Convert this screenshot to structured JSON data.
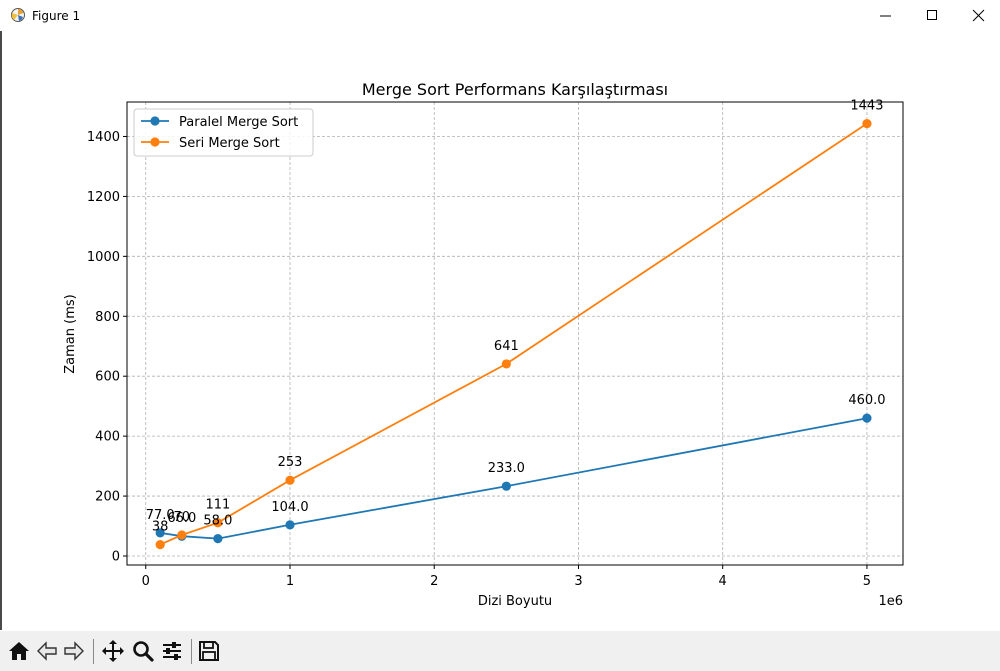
{
  "window": {
    "title": "Figure 1"
  },
  "toolbar": {
    "buttons": [
      {
        "name": "home-icon"
      },
      {
        "name": "back-arrow-icon"
      },
      {
        "name": "forward-arrow-icon"
      },
      {
        "name": "pan-icon"
      },
      {
        "name": "zoom-icon"
      },
      {
        "name": "configure-subplots-icon"
      },
      {
        "name": "save-icon"
      }
    ]
  },
  "chart_data": {
    "type": "line",
    "title": "Merge Sort Performans Karşılaştırması",
    "xlabel": "Dizi Boyutu",
    "ylabel": "Zaman (ms)",
    "x_offset_text": "1e6",
    "xlim": [
      -0.13,
      5.25
    ],
    "ylim": [
      -30,
      1515
    ],
    "x_ticks": [
      0,
      1,
      2,
      3,
      4,
      5
    ],
    "x_tick_labels": [
      "0",
      "1",
      "2",
      "3",
      "4",
      "5"
    ],
    "y_ticks": [
      0,
      200,
      400,
      600,
      800,
      1000,
      1200,
      1400
    ],
    "y_tick_labels": [
      "0",
      "200",
      "400",
      "600",
      "800",
      "1000",
      "1200",
      "1400"
    ],
    "grid": true,
    "legend": "upper left",
    "x": [
      0.1,
      0.25,
      0.5,
      1,
      2.5,
      5
    ],
    "series": [
      {
        "name": "Paralel Merge Sort",
        "color": "#1f77b4",
        "values": [
          77,
          66,
          58,
          104,
          233,
          460
        ],
        "labels": [
          "77.0",
          "66.0",
          "58.0",
          "104.0",
          "233.0",
          "460.0"
        ]
      },
      {
        "name": "Seri Merge Sort",
        "color": "#ff7f0e",
        "values": [
          38,
          70,
          111,
          253,
          641,
          1443
        ],
        "labels": [
          "38",
          "70",
          "111",
          "253",
          "641",
          "1443"
        ]
      }
    ]
  }
}
